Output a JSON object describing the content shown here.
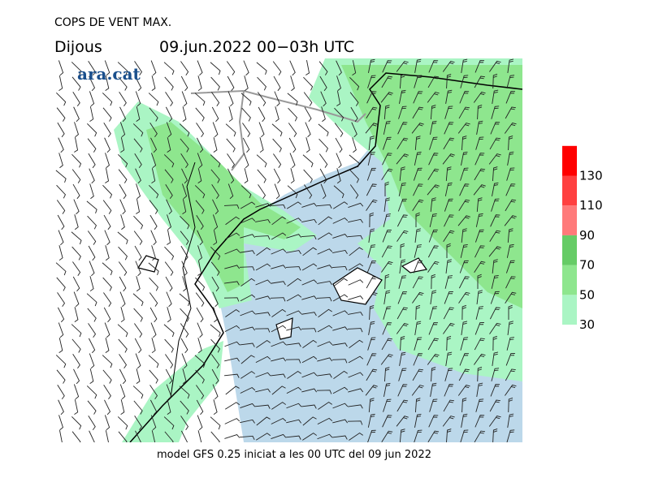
{
  "header": {
    "title": "COPS DE VENT MAX.",
    "day": "Dijous",
    "period": "09.jun.2022 00−03h UTC",
    "brand": "ara.cat"
  },
  "footer": "model GFS 0.25 iniciat a les 00 UTC del 09 jun 2022",
  "legend": {
    "levels": [
      30,
      50,
      70,
      90,
      110,
      130
    ],
    "colors": [
      "#aaf5c4",
      "#8ee68e",
      "#66cc66",
      "#ff7a7a",
      "#ff4040",
      "#ff0000"
    ]
  }
}
